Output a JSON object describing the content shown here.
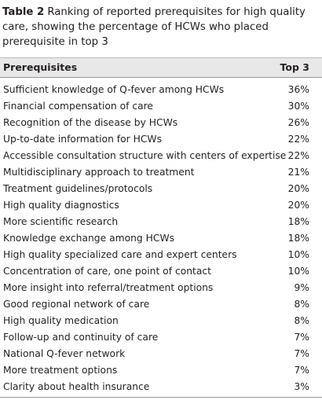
{
  "caption": {
    "label": "Table 2",
    "text": "Ranking of reported prerequisites for high quality care, showing the percentage of HCWs who placed prerequisite in top 3"
  },
  "table": {
    "header": [
      "Prerequisites",
      "Top 3"
    ],
    "rows": [
      [
        "Sufficient knowledge of Q-fever among HCWs",
        "36%"
      ],
      [
        "Financial compensation of care",
        "30%"
      ],
      [
        "Recognition of the disease by HCWs",
        "26%"
      ],
      [
        "Up-to-date information for HCWs",
        "22%"
      ],
      [
        "Accessible consultation structure with centers of expertise",
        "22%"
      ],
      [
        "Multidisciplinary approach to treatment",
        "21%"
      ],
      [
        "Treatment guidelines/protocols",
        "20%"
      ],
      [
        "High quality diagnostics",
        "20%"
      ],
      [
        "More scientific research",
        "18%"
      ],
      [
        "Knowledge exchange among HCWs",
        "18%"
      ],
      [
        "High quality specialized care and expert centers",
        "10%"
      ],
      [
        "Concentration of care, one point of contact",
        "10%"
      ],
      [
        "More insight into referral/treatment options",
        "9%"
      ],
      [
        "Good regional network of care",
        "8%"
      ],
      [
        "High quality medication",
        "8%"
      ],
      [
        "Follow-up and continuity of care",
        "7%"
      ],
      [
        "National Q-fever network",
        "7%"
      ],
      [
        "More treatment options",
        "7%"
      ],
      [
        "Clarity about health insurance",
        "3%"
      ]
    ]
  }
}
